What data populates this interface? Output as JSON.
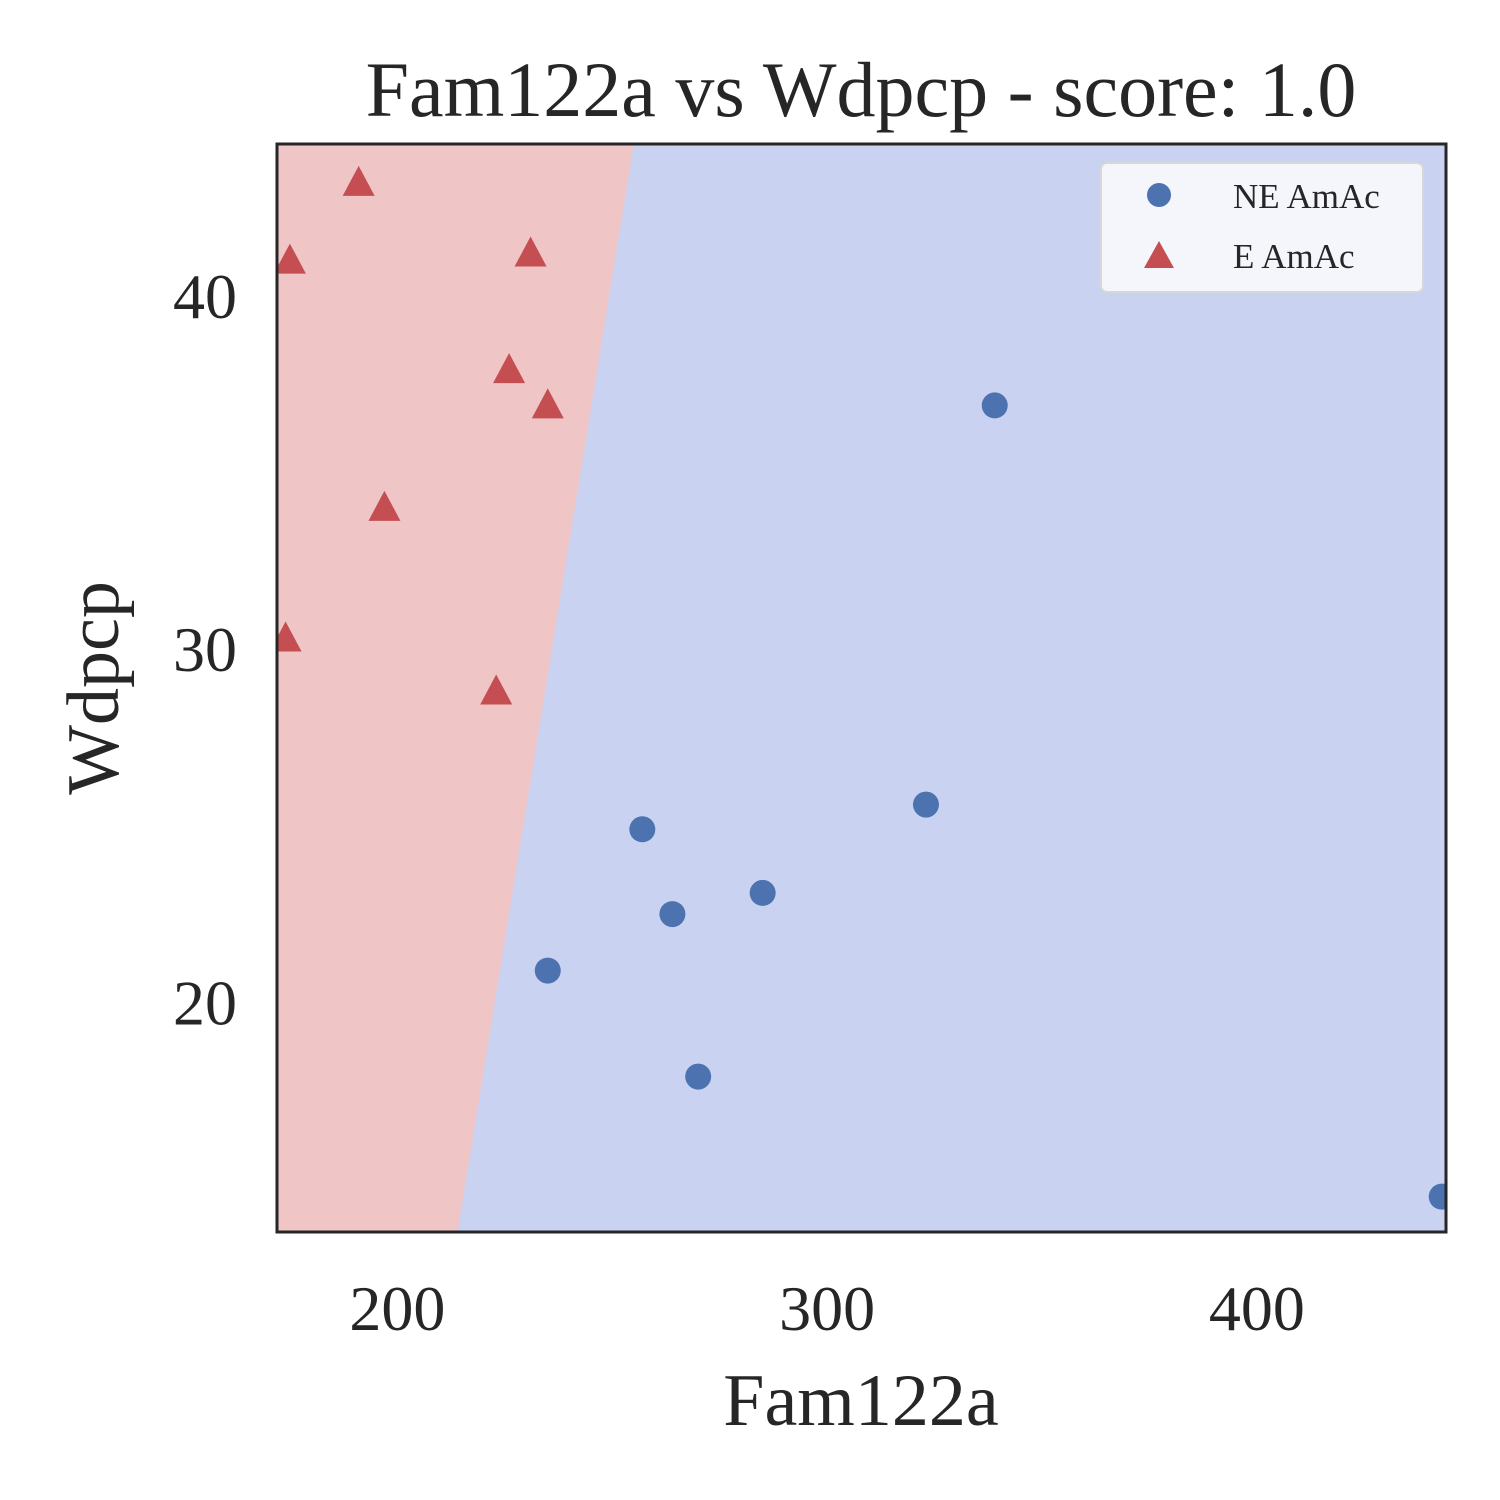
{
  "chart_data": {
    "type": "scatter",
    "title": "Fam122a vs Wdpcp - score: 1.0",
    "xlabel": "Fam122a",
    "ylabel": "Wdpcp",
    "xlim": [
      172,
      444
    ],
    "ylim": [
      13.5,
      44.3
    ],
    "xticks": [
      200,
      300,
      400
    ],
    "yticks": [
      20,
      30,
      40
    ],
    "grid": false,
    "legend_position": "top-right",
    "decision_boundary": {
      "left_class": "E AmAc",
      "right_class": "NE AmAc",
      "points": [
        [
          214,
          13.5
        ],
        [
          255,
          44.3
        ]
      ],
      "colors": {
        "left": "#efc5c6",
        "right": "#c9d2f1"
      }
    },
    "series": [
      {
        "name": "NE AmAc",
        "marker": "circle",
        "color": "#4c72b0",
        "points": [
          [
            339,
            36.9
          ],
          [
            257,
            24.9
          ],
          [
            264,
            22.5
          ],
          [
            285,
            23.1
          ],
          [
            323,
            25.6
          ],
          [
            235,
            20.9
          ],
          [
            270,
            17.9
          ],
          [
            443,
            14.5
          ]
        ]
      },
      {
        "name": "E AmAc",
        "marker": "triangle",
        "color": "#c44e52",
        "points": [
          [
            191,
            43.2
          ],
          [
            175,
            41.0
          ],
          [
            231,
            41.2
          ],
          [
            226,
            37.9
          ],
          [
            235,
            36.9
          ],
          [
            197,
            34.0
          ],
          [
            174,
            30.3
          ],
          [
            223,
            28.8
          ]
        ]
      }
    ]
  }
}
